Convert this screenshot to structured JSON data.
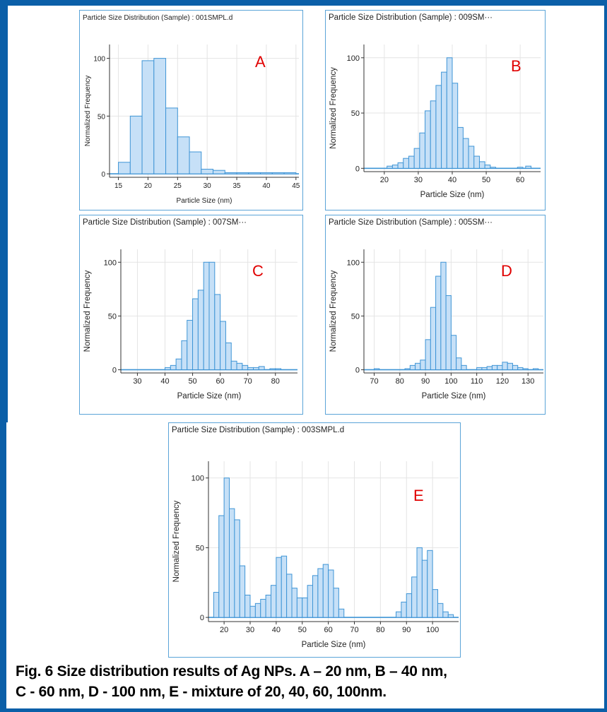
{
  "colors": {
    "frame": "#0b5fa8",
    "panel_border": "#5ba4d8",
    "bar_fill": "#c6e0f7",
    "bar_stroke": "#3f95d6",
    "panel_letter": "#e00000"
  },
  "caption": {
    "line1": "Fig. 6 Size distribution results of Ag NPs.  A – 20 nm, B – 40 nm,",
    "line2": "C - 60 nm, D - 100 nm, E - mixture of 20, 40, 60, 100nm."
  },
  "chart_data": [
    {
      "id": "A",
      "type": "bar",
      "title": "Particle Size Distribution (Sample) : 001SMPL.d",
      "panel_label": "A",
      "xlabel": "Particle Size (nm)",
      "ylabel": "Normalized Frequency",
      "xlim": [
        13.5,
        45.5
      ],
      "ylim": [
        -3,
        112
      ],
      "xticks": [
        15,
        20,
        25,
        30,
        35,
        40,
        45
      ],
      "yticks": [
        0,
        50,
        100
      ],
      "bin_width": 2,
      "x": [
        16,
        18,
        20,
        22,
        24,
        26,
        28,
        30,
        32,
        34,
        36,
        38,
        40,
        42,
        44
      ],
      "values": [
        10,
        50,
        98,
        100,
        57,
        32,
        19,
        4,
        3,
        1,
        1,
        1,
        1,
        1,
        1
      ],
      "grid": true
    },
    {
      "id": "B",
      "type": "bar",
      "title": "Particle Size Distribution (Sample) : 009SM···",
      "panel_label": "B",
      "xlabel": "Particle Size (nm)",
      "ylabel": "Normalized Frequency",
      "xlim": [
        14,
        66
      ],
      "ylim": [
        -3,
        112
      ],
      "xticks": [
        20,
        30,
        40,
        50,
        60
      ],
      "yticks": [
        0,
        50,
        100
      ],
      "bin_width": 1.6,
      "x": [
        21.6,
        23.2,
        24.8,
        26.4,
        28.0,
        29.6,
        31.2,
        32.8,
        34.4,
        36.0,
        37.6,
        39.2,
        40.8,
        42.4,
        44.0,
        45.6,
        47.2,
        48.8,
        50.4,
        52.0,
        60.0,
        62.4
      ],
      "values": [
        2,
        3,
        5,
        9,
        11,
        18,
        32,
        52,
        61,
        75,
        87,
        100,
        77,
        37,
        27,
        20,
        11,
        6,
        3,
        1,
        1,
        2
      ],
      "grid": true
    },
    {
      "id": "C",
      "type": "bar",
      "title": "Particle Size Distribution (Sample) : 007SM···",
      "panel_label": "C",
      "xlabel": "Particle Size (nm)",
      "ylabel": "Normalized Frequency",
      "xlim": [
        24,
        88
      ],
      "ylim": [
        -3,
        112
      ],
      "xticks": [
        30,
        40,
        50,
        60,
        70,
        80
      ],
      "yticks": [
        0,
        50,
        100
      ],
      "bin_width": 2,
      "x": [
        41,
        43,
        45,
        47,
        49,
        51,
        53,
        55,
        57,
        59,
        61,
        63,
        65,
        67,
        69,
        71,
        73,
        75,
        79,
        81
      ],
      "values": [
        2,
        4,
        10,
        27,
        46,
        66,
        74,
        100,
        100,
        70,
        45,
        25,
        8,
        6,
        4,
        2,
        2,
        3,
        1,
        1
      ],
      "grid": true
    },
    {
      "id": "D",
      "type": "bar",
      "title": "Particle Size Distribution (Sample) : 005SM···",
      "panel_label": "D",
      "xlabel": "Particle Size (nm)",
      "ylabel": "Normalized Frequency",
      "xlim": [
        66,
        136
      ],
      "ylim": [
        -3,
        112
      ],
      "xticks": [
        70,
        80,
        90,
        100,
        110,
        120,
        130
      ],
      "yticks": [
        0,
        50,
        100
      ],
      "bin_width": 2,
      "x": [
        71,
        83,
        85,
        87,
        89,
        91,
        93,
        95,
        97,
        99,
        101,
        103,
        105,
        111,
        113,
        115,
        117,
        119,
        121,
        123,
        125,
        127,
        129,
        133
      ],
      "values": [
        1,
        1,
        4,
        6,
        9,
        28,
        58,
        87,
        100,
        69,
        32,
        11,
        4,
        2,
        2,
        3,
        4,
        4,
        7,
        6,
        4,
        2,
        1,
        1
      ],
      "grid": true
    },
    {
      "id": "E",
      "type": "bar",
      "title": "Particle Size Distribution (Sample) : 003SMPL.d",
      "panel_label": "E",
      "xlabel": "Particle Size (nm)",
      "ylabel": "Normalized Frequency",
      "xlim": [
        14,
        110
      ],
      "ylim": [
        -3,
        112
      ],
      "xticks": [
        20,
        30,
        40,
        50,
        60,
        70,
        80,
        90,
        100
      ],
      "yticks": [
        0,
        50,
        100
      ],
      "bin_width": 2,
      "x": [
        17,
        19,
        21,
        23,
        25,
        27,
        29,
        31,
        33,
        35,
        37,
        39,
        41,
        43,
        45,
        47,
        49,
        51,
        53,
        55,
        57,
        59,
        61,
        63,
        65,
        87,
        89,
        91,
        93,
        95,
        97,
        99,
        101,
        103,
        105,
        107
      ],
      "values": [
        18,
        73,
        100,
        78,
        70,
        37,
        16,
        8,
        10,
        13,
        16,
        23,
        43,
        44,
        31,
        21,
        14,
        14,
        23,
        30,
        35,
        38,
        34,
        21,
        6,
        4,
        11,
        17,
        29,
        50,
        41,
        48,
        20,
        10,
        4,
        2
      ],
      "grid": true
    }
  ]
}
